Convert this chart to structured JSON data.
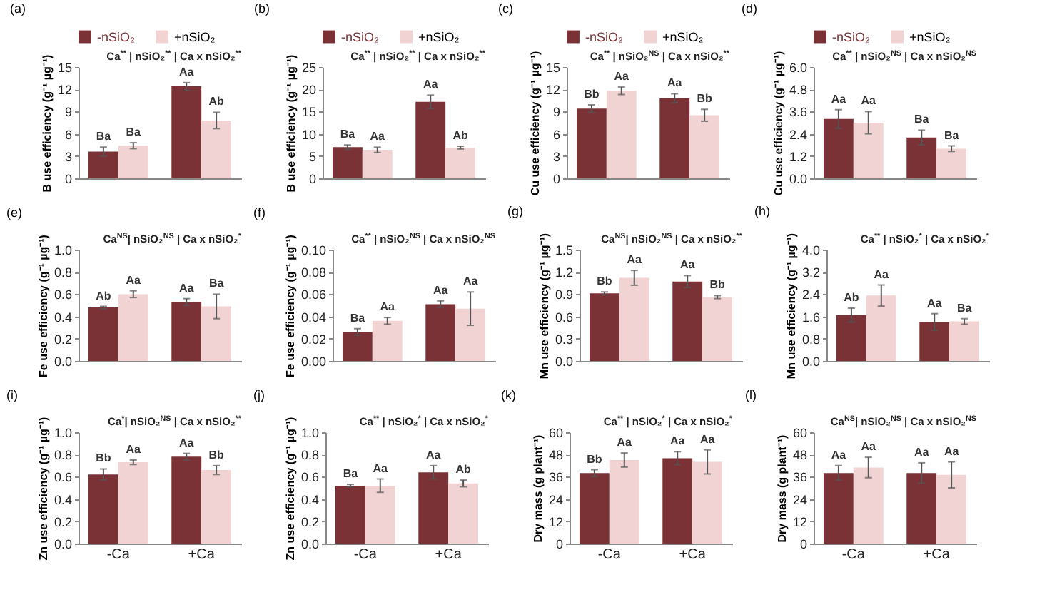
{
  "chart_data": [
    {
      "type": "bar",
      "title": "(a)",
      "annotations": [
        "Ca$^{**}$ | nSiO₂$^{**}$ | Ca x nSiO₂$^{**}$"
      ],
      "ylabel": "B use efficiency (g⁻¹ µg⁻¹)",
      "categories": [
        null,
        null
      ],
      "ylim": [
        0,
        15
      ],
      "yticks": [
        0,
        3,
        6,
        9,
        12,
        15
      ],
      "legend": "top",
      "series": [
        {
          "name": "-nSiO₂",
          "color": "#7b3237",
          "values": [
            3.6,
            12.4
          ],
          "errors": [
            0.6,
            0.5
          ],
          "value_labels": [
            "Ba",
            "Aa"
          ]
        },
        {
          "name": "+nSiO₂",
          "color": "#f1d3d3",
          "values": [
            4.4,
            7.8
          ],
          "errors": [
            0.4,
            1.1
          ],
          "value_labels": [
            "Ba",
            "Ab"
          ]
        }
      ]
    },
    {
      "type": "bar",
      "title": "(b)",
      "annotations": [
        "Ca$^{**}$ | nSiO₂$^{**}$ | Ca x nSiO₂$^{**}$"
      ],
      "ylabel": "B use efficiency (g⁻¹ µg⁻¹)",
      "categories": [
        null,
        null
      ],
      "ylim": [
        0,
        25
      ],
      "yticks": [
        0,
        5,
        10,
        15,
        20,
        25
      ],
      "legend": "top",
      "series": [
        {
          "name": "-nSiO₂",
          "color": "#7b3237",
          "values": [
            7.0,
            17.2
          ],
          "errors": [
            0.5,
            1.5
          ],
          "value_labels": [
            "Ba",
            "Aa"
          ]
        },
        {
          "name": "+nSiO₂",
          "color": "#f1d3d3",
          "values": [
            6.4,
            6.9
          ],
          "errors": [
            0.6,
            0.3
          ],
          "value_labels": [
            "Aa",
            "Ab"
          ]
        }
      ]
    },
    {
      "type": "bar",
      "title": "(c)",
      "annotations": [
        "Ca$^{**}$ | nSiO₂$^{NS}$ | Ca x nSiO₂$^{**}$"
      ],
      "ylabel": "Cu use efficiency (g⁻¹ µg⁻¹)",
      "categories": [
        null,
        null
      ],
      "ylim": [
        0,
        15
      ],
      "yticks": [
        0,
        3,
        6,
        9,
        12,
        15
      ],
      "legend": "top",
      "series": [
        {
          "name": "-nSiO₂",
          "color": "#7b3237",
          "values": [
            9.4,
            10.8
          ],
          "errors": [
            0.5,
            0.6
          ],
          "value_labels": [
            "Bb",
            "Aa"
          ]
        },
        {
          "name": "+nSiO₂",
          "color": "#f1d3d3",
          "values": [
            11.8,
            8.5
          ],
          "errors": [
            0.5,
            0.8
          ],
          "value_labels": [
            "Aa",
            "Bb"
          ]
        }
      ]
    },
    {
      "type": "bar",
      "title": "(d)",
      "annotations": [
        "Ca$^{**}$ | nSiO₂$^{NS}$ | Ca x nSiO₂$^{NS}$"
      ],
      "ylabel": "Cu use efficiency (g⁻¹ µg⁻¹)",
      "categories": [
        null,
        null
      ],
      "ylim": [
        0,
        6
      ],
      "yticks": [
        {
          "value": 0,
          "label": "0.0"
        },
        1.2,
        2.4,
        3.6,
        4.8,
        {
          "value": 6,
          "label": "6.0"
        }
      ],
      "legend": "top",
      "series": [
        {
          "name": "-nSiO₂",
          "color": "#7b3237",
          "values": [
            3.2,
            2.2
          ],
          "errors": [
            0.5,
            0.4
          ],
          "value_labels": [
            "Aa",
            "Ba"
          ]
        },
        {
          "name": "+nSiO₂",
          "color": "#f1d3d3",
          "values": [
            3.0,
            1.6
          ],
          "errors": [
            0.6,
            0.15
          ],
          "value_labels": [
            "Aa",
            "Ba"
          ]
        }
      ]
    },
    {
      "type": "bar",
      "title": "(e)",
      "annotations": [
        "Ca$^{NS}$| nSiO₂$^{NS}$ | Ca x nSiO₂$^{*}$"
      ],
      "ylabel": "Fe use efficiency (g⁻¹ µg⁻¹)",
      "categories": [
        null,
        null
      ],
      "ylim": [
        0,
        1
      ],
      "yticks": [
        {
          "value": 0,
          "label": "0.0"
        },
        0.2,
        0.4,
        0.6,
        0.8,
        {
          "value": 1,
          "label": "1.0"
        }
      ],
      "series": [
        {
          "color": "#7b3237",
          "values": [
            0.48,
            0.53
          ],
          "errors": [
            0.01,
            0.03
          ],
          "value_labels": [
            "Ab",
            "Aa"
          ]
        },
        {
          "color": "#f1d3d3",
          "values": [
            0.6,
            0.49
          ],
          "errors": [
            0.03,
            0.11
          ],
          "value_labels": [
            "Aa",
            "Ba"
          ]
        }
      ]
    },
    {
      "type": "bar",
      "title": "(f)",
      "annotations": [
        "Ca$^{**}$ | nSiO₂$^{NS}$ | Ca x nSiO₂$^{NS}$"
      ],
      "ylabel": "Fe use efficiency (g⁻¹ µg⁻¹)",
      "categories": [
        null,
        null
      ],
      "ylim": [
        0,
        0.1
      ],
      "yticks": [
        {
          "value": 0,
          "label": "0.00"
        },
        0.02,
        0.04,
        0.06,
        0.08,
        {
          "value": 0.1,
          "label": "0.10"
        }
      ],
      "series": [
        {
          "color": "#7b3237",
          "values": [
            0.026,
            0.051
          ],
          "errors": [
            0.003,
            0.003
          ],
          "value_labels": [
            "Ba",
            "Aa"
          ]
        },
        {
          "color": "#f1d3d3",
          "values": [
            0.036,
            0.047
          ],
          "errors": [
            0.003,
            0.015
          ],
          "value_labels": [
            "Aa",
            "Aa"
          ]
        }
      ]
    },
    {
      "type": "bar",
      "title": "(g)",
      "annotations": [
        "Ca$^{NS}$| nSiO₂$^{NS}$ | Ca x nSiO₂$^{**}$"
      ],
      "ylabel": "Mn use efficiency (g⁻¹ µg⁻¹)",
      "categories": [
        null,
        null
      ],
      "ylim": [
        0,
        1.5
      ],
      "yticks": [
        {
          "value": 0,
          "label": "0.0"
        },
        0.3,
        0.6,
        0.9,
        1.2,
        1.5
      ],
      "series": [
        {
          "color": "#7b3237",
          "values": [
            0.91,
            1.07
          ],
          "errors": [
            0.02,
            0.08
          ],
          "value_labels": [
            "Bb",
            "Aa"
          ]
        },
        {
          "color": "#f1d3d3",
          "values": [
            1.12,
            0.86
          ],
          "errors": [
            0.1,
            0.02
          ],
          "value_labels": [
            "Aa",
            "Bb"
          ]
        }
      ]
    },
    {
      "type": "bar",
      "title": "(h)",
      "annotations": [
        "Ca$^{**}$ | nSiO₂$^{*}$ | Ca x nSiO₂$^{*}$"
      ],
      "ylabel": "Mn use efficiency (g⁻¹ µg⁻¹)",
      "categories": [
        null,
        null
      ],
      "ylim": [
        0,
        4
      ],
      "yticks": [
        {
          "value": 0,
          "label": "0.0"
        },
        0.8,
        1.6,
        2.4,
        3.2,
        {
          "value": 4,
          "label": "4.0"
        }
      ],
      "series": [
        {
          "color": "#7b3237",
          "values": [
            1.65,
            1.4
          ],
          "errors": [
            0.25,
            0.3
          ],
          "value_labels": [
            "Ab",
            "Aa"
          ]
        },
        {
          "color": "#f1d3d3",
          "values": [
            2.35,
            1.42
          ],
          "errors": [
            0.38,
            0.1
          ],
          "value_labels": [
            "Aa",
            "Ba"
          ]
        }
      ]
    },
    {
      "type": "bar",
      "title": "(i)",
      "annotations": [
        "Ca$^{*}$| nSiO₂$^{NS}$ | Ca x nSiO₂$^{**}$"
      ],
      "ylabel": "Zn use efficiency (g⁻¹ µg⁻¹)",
      "categories": [
        "-Ca",
        "+Ca"
      ],
      "ylim": [
        0,
        1
      ],
      "yticks": [
        {
          "value": 0,
          "label": "0.0"
        },
        0.2,
        0.4,
        0.6,
        0.8,
        {
          "value": 1,
          "label": "1.0"
        }
      ],
      "series": [
        {
          "color": "#7b3237",
          "values": [
            0.62,
            0.78
          ],
          "errors": [
            0.05,
            0.03
          ],
          "value_labels": [
            "Bb",
            "Aa"
          ]
        },
        {
          "color": "#f1d3d3",
          "values": [
            0.73,
            0.66
          ],
          "errors": [
            0.02,
            0.04
          ],
          "value_labels": [
            "Aa",
            "Bb"
          ]
        }
      ]
    },
    {
      "type": "bar",
      "title": "(j)",
      "annotations": [
        "Ca$^{**}$ | nSiO₂$^{*}$ | Ca x nSiO₂$^{*}$"
      ],
      "ylabel": "Zn use efficiency (g⁻¹ µg⁻¹)",
      "categories": [
        "-Ca",
        "+Ca"
      ],
      "ylim": [
        0,
        1
      ],
      "yticks": [
        {
          "value": 0,
          "label": "0.0"
        },
        0.2,
        0.4,
        0.6,
        0.8,
        {
          "value": 1,
          "label": "1.0"
        }
      ],
      "series": [
        {
          "color": "#7b3237",
          "values": [
            0.52,
            0.64
          ],
          "errors": [
            0.01,
            0.06
          ],
          "value_labels": [
            "Ba",
            "Aa"
          ]
        },
        {
          "color": "#f1d3d3",
          "values": [
            0.52,
            0.54
          ],
          "errors": [
            0.06,
            0.03
          ],
          "value_labels": [
            "Aa",
            "Ab"
          ]
        }
      ]
    },
    {
      "type": "bar",
      "title": "(k)",
      "annotations": [
        "Ca$^{**}$ | nSiO₂$^{*}$ | Ca x nSiO₂$^{*}$"
      ],
      "ylabel": "Dry mass (g plant⁻¹)",
      "categories": [
        "-Ca",
        "+Ca"
      ],
      "ylim": [
        0,
        60
      ],
      "yticks": [
        0,
        12,
        24,
        36,
        48,
        60
      ],
      "series": [
        {
          "color": "#7b3237",
          "values": [
            38,
            46
          ],
          "errors": [
            1.8,
            3.5
          ],
          "value_labels": [
            "Bb",
            "Aa"
          ]
        },
        {
          "color": "#f1d3d3",
          "values": [
            45,
            44
          ],
          "errors": [
            3.8,
            6.5
          ],
          "value_labels": [
            "Aa",
            "Aa"
          ]
        }
      ]
    },
    {
      "type": "bar",
      "title": "(l)",
      "annotations": [
        "Ca$^{NS}$| nSiO₂$^{NS}$ | Ca x nSiO₂$^{NS}$"
      ],
      "ylabel": "Dry mass (g plant⁻¹)",
      "categories": [
        "-Ca",
        "+Ca"
      ],
      "ylim": [
        0,
        60
      ],
      "yticks": [
        0,
        12,
        24,
        36,
        48,
        60
      ],
      "series": [
        {
          "color": "#7b3237",
          "values": [
            38,
            38
          ],
          "errors": [
            4,
            5.5
          ],
          "value_labels": [
            "Aa",
            "Aa"
          ]
        },
        {
          "color": "#f1d3d3",
          "values": [
            41,
            37
          ],
          "errors": [
            5.5,
            7
          ],
          "value_labels": [
            "Aa",
            "Aa"
          ]
        }
      ]
    }
  ]
}
